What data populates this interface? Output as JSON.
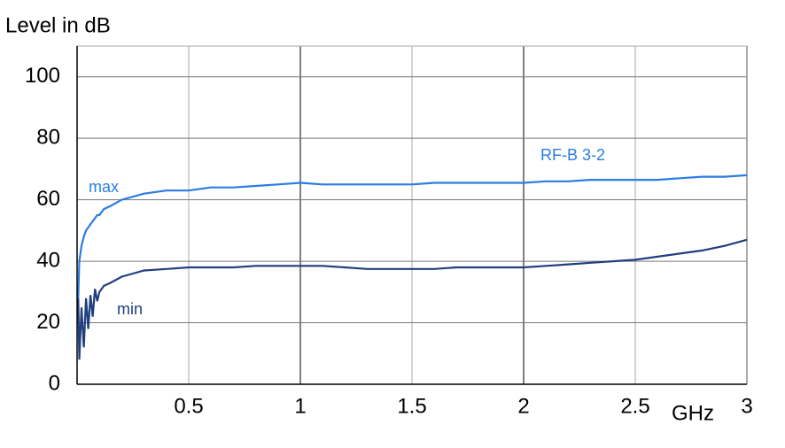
{
  "chart_data": {
    "type": "line",
    "y_label": "Level in dB",
    "x_label": "GHz",
    "annotation": "RF-B 3-2",
    "x": [
      0.005,
      0.01,
      0.02,
      0.03,
      0.04,
      0.05,
      0.06,
      0.07,
      0.08,
      0.09,
      0.1,
      0.12,
      0.15,
      0.2,
      0.25,
      0.3,
      0.4,
      0.5,
      0.6,
      0.7,
      0.8,
      0.9,
      1.0,
      1.1,
      1.2,
      1.3,
      1.4,
      1.5,
      1.6,
      1.7,
      1.8,
      1.9,
      2.0,
      2.1,
      2.2,
      2.3,
      2.4,
      2.5,
      2.6,
      2.7,
      2.8,
      2.9,
      3.0
    ],
    "series": [
      {
        "name": "max",
        "color": "#2a7de1",
        "values": [
          28,
          40,
          45,
          48,
          50,
          51,
          52,
          53,
          54,
          55,
          55,
          57,
          58,
          60,
          61,
          62,
          63,
          63,
          64,
          64,
          64.5,
          65,
          65.5,
          65,
          65,
          65,
          65,
          65,
          65.5,
          65.5,
          65.5,
          65.5,
          65.5,
          66,
          66,
          66.5,
          66.5,
          66.5,
          66.5,
          67,
          67.5,
          67.5,
          68
        ]
      },
      {
        "name": "min",
        "color": "#1f3f7f",
        "values": [
          28,
          8,
          25,
          12,
          28,
          18,
          29,
          22,
          31,
          27,
          30,
          32,
          33,
          35,
          36,
          37,
          37.5,
          38,
          38,
          38,
          38.5,
          38.5,
          38.5,
          38.5,
          38,
          37.5,
          37.5,
          37.5,
          37.5,
          38,
          38,
          38,
          38,
          38.5,
          39,
          39.5,
          40,
          40.5,
          41.5,
          42.5,
          43.5,
          45,
          47
        ]
      }
    ],
    "xlim": [
      0,
      3
    ],
    "xticks": [
      0.5,
      1,
      1.5,
      2,
      2.5,
      3
    ],
    "ylim": [
      0,
      110
    ],
    "yticks": [
      0,
      20,
      40,
      60,
      80,
      100
    ],
    "grid": true
  }
}
